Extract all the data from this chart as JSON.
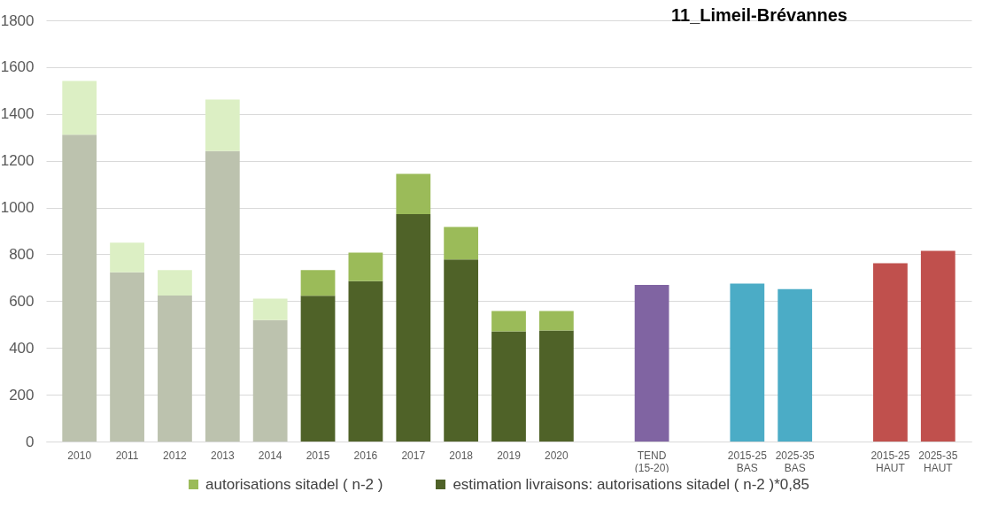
{
  "chart_data": {
    "type": "bar",
    "title": "11_Limeil-Brévannes",
    "stacked": true,
    "categories": [
      "2010",
      "2011",
      "2012",
      "2013",
      "2014",
      "2015",
      "2016",
      "2017",
      "2018",
      "2019",
      "2020",
      null,
      "TEND\n(15-20)",
      null,
      "2015-25\nBAS",
      "2025-35\nBAS",
      null,
      "2015-25\nHAUT",
      "2025-35\nHAUT"
    ],
    "series": [
      {
        "name": "estimation livraisons: autorisations sitadel ( n-2 )*0,85",
        "color": "#4f6228",
        "colors": [
          "#bcc2ae",
          "#bcc2ae",
          "#bcc2ae",
          "#bcc2ae",
          "#bcc2ae",
          "#4f6228",
          "#4f6228",
          "#4f6228",
          "#4f6228",
          "#4f6228",
          "#4f6228",
          null,
          null,
          null,
          null,
          null,
          null,
          null,
          null
        ],
        "values": [
          1311,
          723,
          624,
          1241,
          519,
          623,
          685,
          972,
          778,
          471,
          475,
          null,
          null,
          null,
          null,
          null,
          null,
          null,
          null
        ]
      },
      {
        "name": "autorisations sitadel ( n-2 )",
        "color": "#9bbb59",
        "colors": [
          "#dcefc4",
          "#dcefc4",
          "#dcefc4",
          "#dcefc4",
          "#dcefc4",
          "#9bbb59",
          "#9bbb59",
          "#9bbb59",
          "#9bbb59",
          "#9bbb59",
          "#9bbb59",
          null,
          null,
          null,
          null,
          null,
          null,
          null,
          null
        ],
        "values": [
          230,
          127,
          109,
          221,
          92,
          110,
          122,
          172,
          139,
          87,
          83,
          null,
          null,
          null,
          null,
          null,
          null,
          null,
          null
        ]
      },
      {
        "colors": [
          null,
          null,
          null,
          null,
          null,
          null,
          null,
          null,
          null,
          null,
          null,
          null,
          "#8064a2",
          null,
          "#4bacc6",
          "#4bacc6",
          null,
          "#c0504d",
          "#c0504d"
        ],
        "values": [
          null,
          null,
          null,
          null,
          null,
          null,
          null,
          null,
          null,
          null,
          null,
          null,
          669,
          null,
          675,
          651,
          null,
          762,
          815
        ]
      }
    ],
    "ylim": [
      0,
      1800
    ],
    "yticks": [
      0,
      200,
      400,
      600,
      800,
      1000,
      1200,
      1400,
      1600,
      1800
    ],
    "grid": "y",
    "legend": "bottom"
  }
}
